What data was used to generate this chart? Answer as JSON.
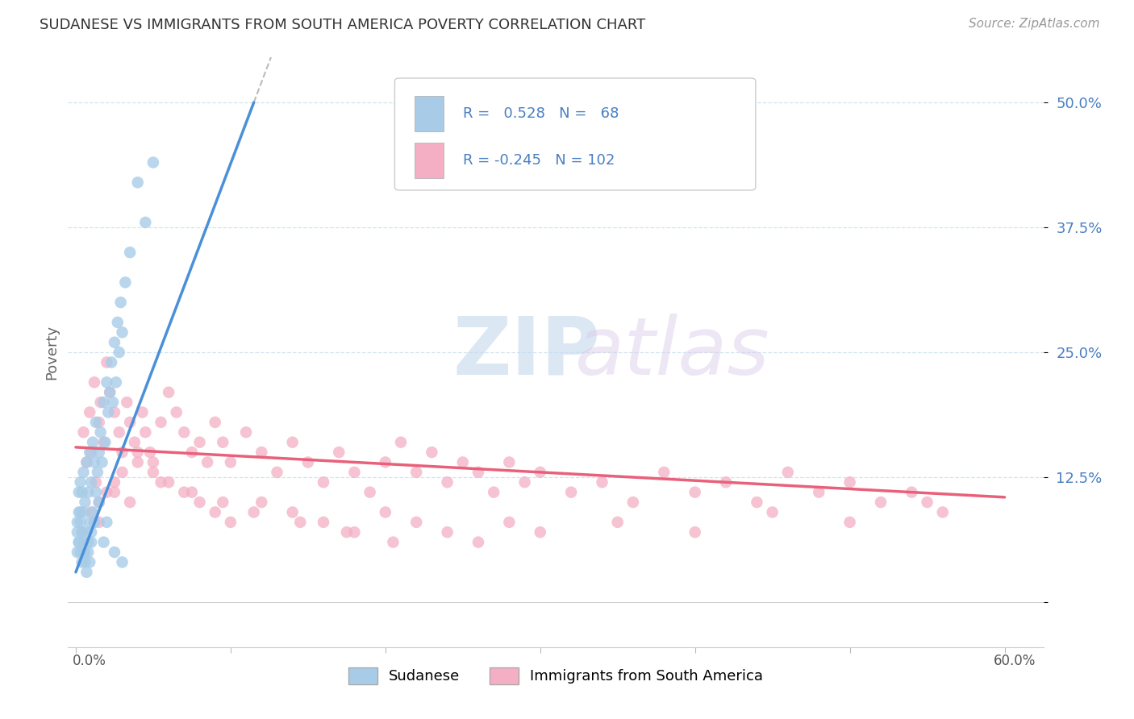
{
  "title": "SUDANESE VS IMMIGRANTS FROM SOUTH AMERICA POVERTY CORRELATION CHART",
  "source": "Source: ZipAtlas.com",
  "ylabel": "Poverty",
  "ytick_vals": [
    0.0,
    0.125,
    0.25,
    0.375,
    0.5
  ],
  "ytick_labels": [
    "",
    "12.5%",
    "25.0%",
    "37.5%",
    "50.0%"
  ],
  "legend_label1": "Sudanese",
  "legend_label2": "Immigrants from South America",
  "r1": 0.528,
  "n1": 68,
  "r2": -0.245,
  "n2": 102,
  "color_blue": "#a8cce8",
  "color_pink": "#f4afc5",
  "line_color_blue": "#4a90d9",
  "line_color_pink": "#e8607a",
  "text_color_blue": "#4a7fc1",
  "grid_color": "#d0e4f0",
  "blue_line_x0": 0.0,
  "blue_line_y0": 0.03,
  "blue_line_x1": 0.115,
  "blue_line_y1": 0.5,
  "pink_line_x0": 0.0,
  "pink_line_y0": 0.155,
  "pink_line_x1": 0.6,
  "pink_line_y1": 0.105,
  "xlim_min": -0.005,
  "xlim_max": 0.625,
  "ylim_min": -0.045,
  "ylim_max": 0.545,
  "sudanese_x": [
    0.001,
    0.002,
    0.002,
    0.003,
    0.003,
    0.003,
    0.004,
    0.004,
    0.004,
    0.005,
    0.005,
    0.005,
    0.006,
    0.006,
    0.007,
    0.007,
    0.008,
    0.008,
    0.009,
    0.009,
    0.01,
    0.01,
    0.011,
    0.011,
    0.012,
    0.012,
    0.013,
    0.013,
    0.014,
    0.015,
    0.016,
    0.017,
    0.018,
    0.019,
    0.02,
    0.021,
    0.022,
    0.023,
    0.024,
    0.025,
    0.026,
    0.027,
    0.028,
    0.029,
    0.03,
    0.032,
    0.035,
    0.04,
    0.045,
    0.05,
    0.001,
    0.001,
    0.002,
    0.002,
    0.003,
    0.004,
    0.005,
    0.006,
    0.007,
    0.008,
    0.009,
    0.01,
    0.012,
    0.015,
    0.018,
    0.02,
    0.025,
    0.03
  ],
  "sudanese_y": [
    0.07,
    0.06,
    0.09,
    0.05,
    0.08,
    0.12,
    0.04,
    0.07,
    0.11,
    0.06,
    0.09,
    0.13,
    0.05,
    0.1,
    0.07,
    0.14,
    0.06,
    0.11,
    0.08,
    0.15,
    0.07,
    0.12,
    0.09,
    0.16,
    0.08,
    0.14,
    0.11,
    0.18,
    0.13,
    0.15,
    0.17,
    0.14,
    0.2,
    0.16,
    0.22,
    0.19,
    0.21,
    0.24,
    0.2,
    0.26,
    0.22,
    0.28,
    0.25,
    0.3,
    0.27,
    0.32,
    0.35,
    0.42,
    0.38,
    0.44,
    0.05,
    0.08,
    0.11,
    0.06,
    0.09,
    0.07,
    0.05,
    0.04,
    0.03,
    0.05,
    0.04,
    0.06,
    0.08,
    0.1,
    0.06,
    0.08,
    0.05,
    0.04
  ],
  "sa_x": [
    0.005,
    0.007,
    0.009,
    0.01,
    0.012,
    0.013,
    0.015,
    0.016,
    0.018,
    0.02,
    0.022,
    0.025,
    0.028,
    0.03,
    0.033,
    0.035,
    0.038,
    0.04,
    0.043,
    0.045,
    0.048,
    0.05,
    0.055,
    0.06,
    0.065,
    0.07,
    0.075,
    0.08,
    0.085,
    0.09,
    0.095,
    0.1,
    0.11,
    0.12,
    0.13,
    0.14,
    0.15,
    0.16,
    0.17,
    0.18,
    0.19,
    0.2,
    0.21,
    0.22,
    0.23,
    0.24,
    0.25,
    0.26,
    0.27,
    0.28,
    0.29,
    0.3,
    0.32,
    0.34,
    0.36,
    0.38,
    0.4,
    0.42,
    0.44,
    0.46,
    0.48,
    0.5,
    0.52,
    0.54,
    0.56,
    0.01,
    0.015,
    0.02,
    0.025,
    0.03,
    0.04,
    0.05,
    0.06,
    0.07,
    0.08,
    0.09,
    0.1,
    0.12,
    0.14,
    0.16,
    0.18,
    0.2,
    0.22,
    0.24,
    0.26,
    0.28,
    0.3,
    0.35,
    0.4,
    0.45,
    0.5,
    0.55,
    0.015,
    0.025,
    0.035,
    0.055,
    0.075,
    0.095,
    0.115,
    0.145,
    0.175,
    0.205
  ],
  "sa_y": [
    0.17,
    0.14,
    0.19,
    0.15,
    0.22,
    0.12,
    0.18,
    0.2,
    0.16,
    0.24,
    0.21,
    0.19,
    0.17,
    0.15,
    0.2,
    0.18,
    0.16,
    0.14,
    0.19,
    0.17,
    0.15,
    0.13,
    0.18,
    0.21,
    0.19,
    0.17,
    0.15,
    0.16,
    0.14,
    0.18,
    0.16,
    0.14,
    0.17,
    0.15,
    0.13,
    0.16,
    0.14,
    0.12,
    0.15,
    0.13,
    0.11,
    0.14,
    0.16,
    0.13,
    0.15,
    0.12,
    0.14,
    0.13,
    0.11,
    0.14,
    0.12,
    0.13,
    0.11,
    0.12,
    0.1,
    0.13,
    0.11,
    0.12,
    0.1,
    0.13,
    0.11,
    0.12,
    0.1,
    0.11,
    0.09,
    0.09,
    0.1,
    0.11,
    0.12,
    0.13,
    0.15,
    0.14,
    0.12,
    0.11,
    0.1,
    0.09,
    0.08,
    0.1,
    0.09,
    0.08,
    0.07,
    0.09,
    0.08,
    0.07,
    0.06,
    0.08,
    0.07,
    0.08,
    0.07,
    0.09,
    0.08,
    0.1,
    0.08,
    0.11,
    0.1,
    0.12,
    0.11,
    0.1,
    0.09,
    0.08,
    0.07,
    0.06
  ]
}
